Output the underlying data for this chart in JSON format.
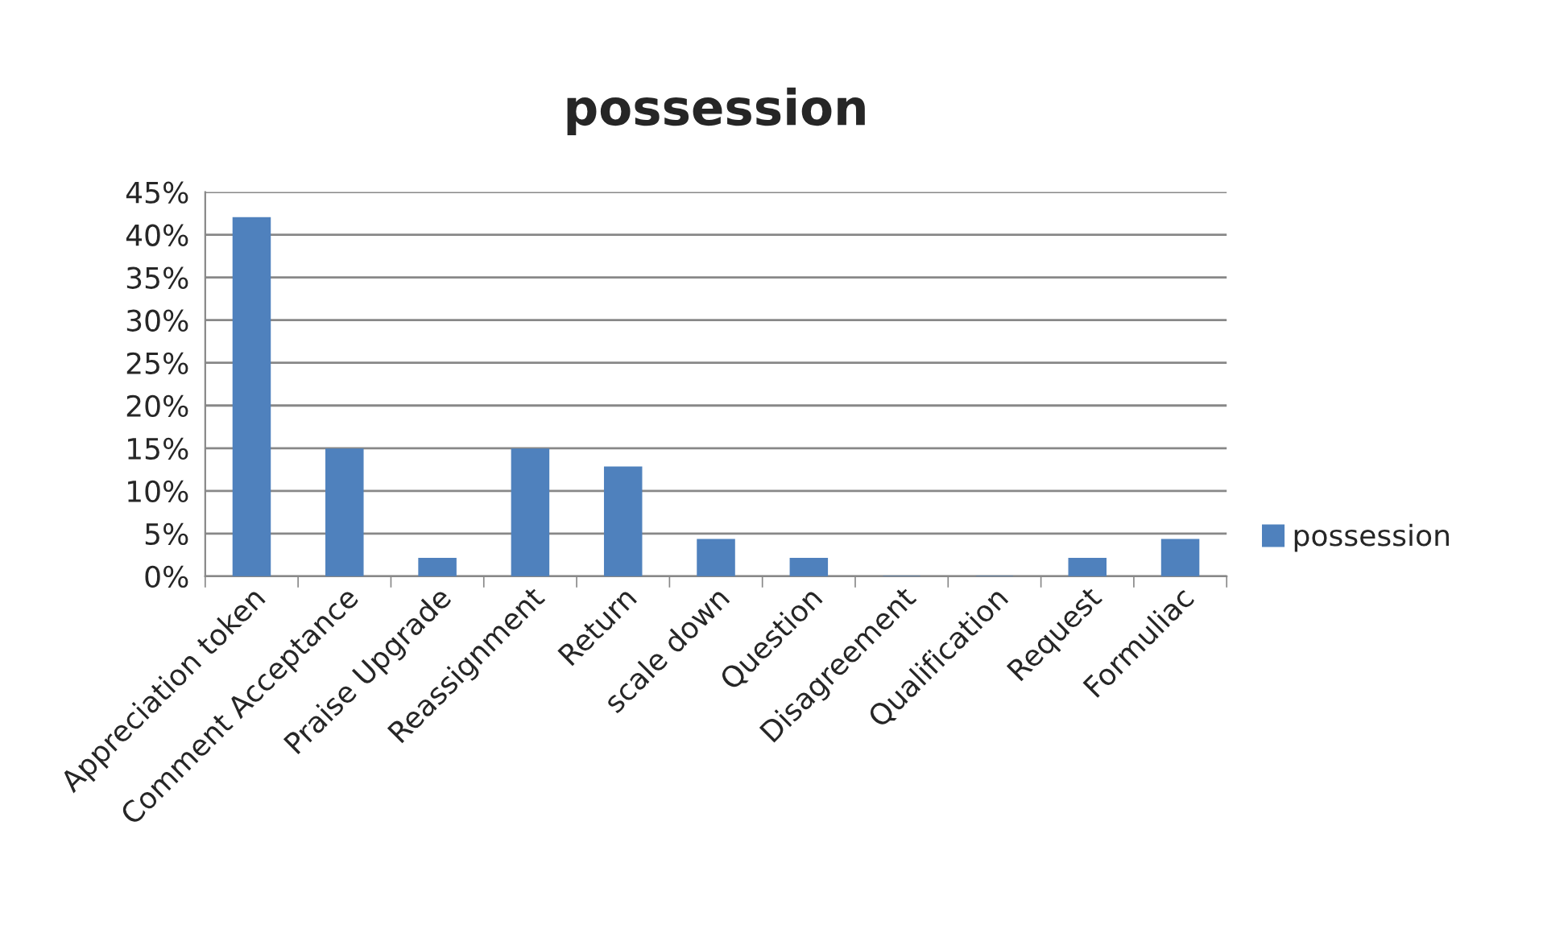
{
  "chart_data": {
    "type": "bar",
    "title": "possession",
    "categories": [
      "Appreciation token",
      "Comment Acceptance",
      "Praise Upgrade",
      "Reassignment",
      "Return",
      "scale down",
      "Question",
      "Disagreement",
      "Qualification",
      "Request",
      "Formuliac"
    ],
    "series": [
      {
        "name": "possession",
        "color": "#4f81bd",
        "values": [
          42.0,
          14.9,
          2.1,
          14.9,
          12.8,
          4.3,
          2.1,
          0,
          0,
          2.1,
          4.3
        ]
      }
    ],
    "ylim": [
      0,
      45
    ],
    "yticks": [
      {
        "value": 0,
        "label": "0%"
      },
      {
        "value": 5,
        "label": "5%"
      },
      {
        "value": 10,
        "label": "10%"
      },
      {
        "value": 15,
        "label": "15%"
      },
      {
        "value": 20,
        "label": "20%"
      },
      {
        "value": 25,
        "label": "25%"
      },
      {
        "value": 30,
        "label": "30%"
      },
      {
        "value": 35,
        "label": "35%"
      },
      {
        "value": 40,
        "label": "40%"
      },
      {
        "value": 45,
        "label": "45%"
      }
    ],
    "grid": "y",
    "legend": "right"
  }
}
